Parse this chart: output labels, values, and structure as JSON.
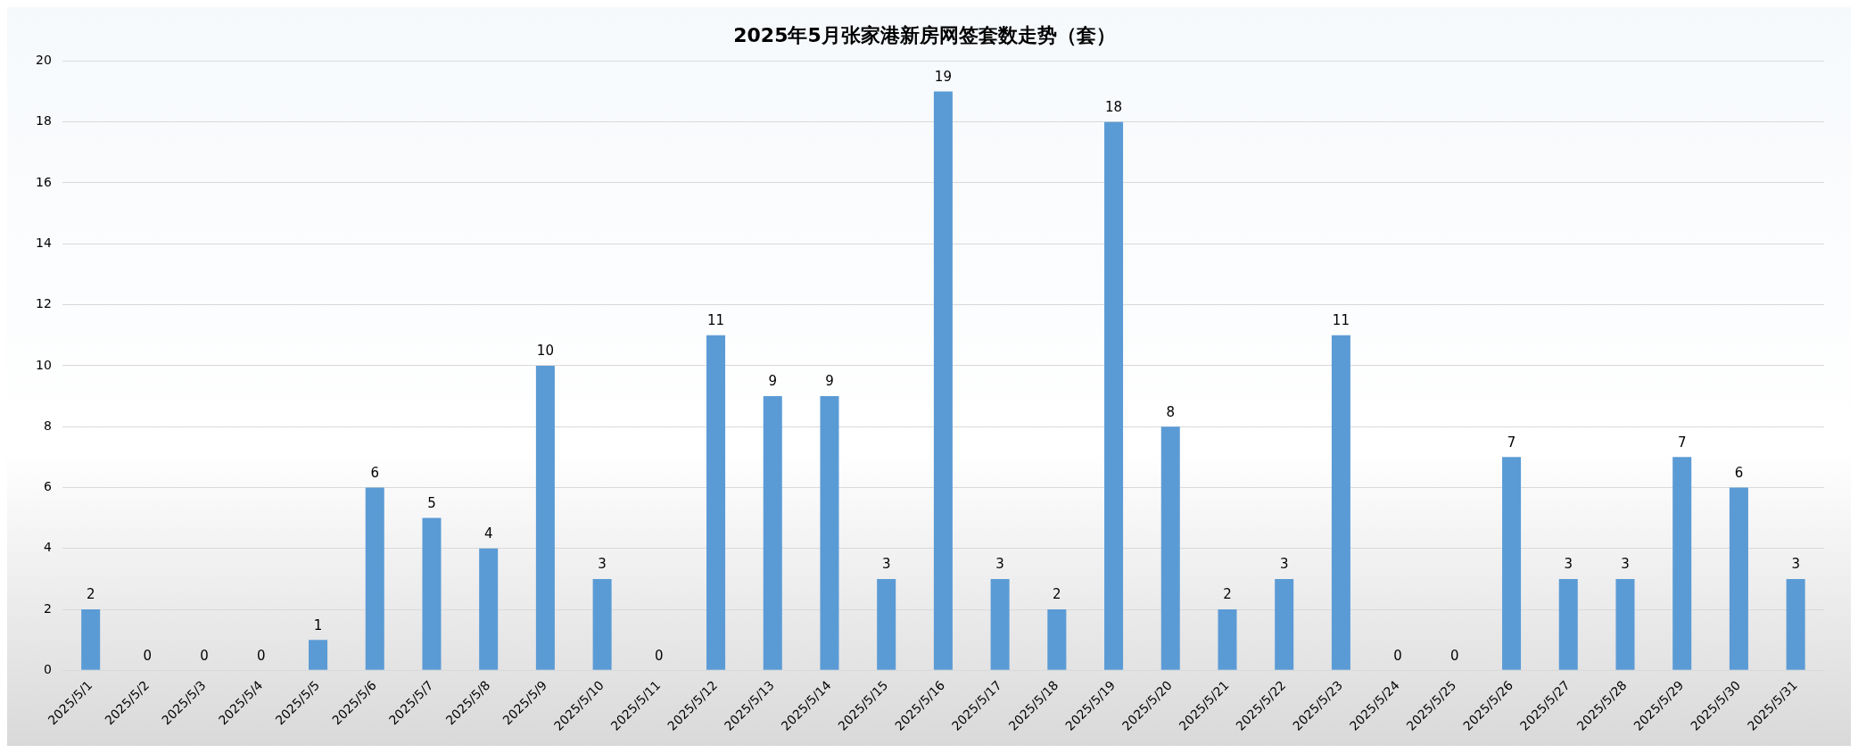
{
  "chart_data": {
    "type": "bar",
    "title": "2025年5月张家港新房网签套数走势（套）",
    "categories": [
      "2025/5/1",
      "2025/5/2",
      "2025/5/3",
      "2025/5/4",
      "2025/5/5",
      "2025/5/6",
      "2025/5/7",
      "2025/5/8",
      "2025/5/9",
      "2025/5/10",
      "2025/5/11",
      "2025/5/12",
      "2025/5/13",
      "2025/5/14",
      "2025/5/15",
      "2025/5/16",
      "2025/5/17",
      "2025/5/18",
      "2025/5/19",
      "2025/5/20",
      "2025/5/21",
      "2025/5/22",
      "2025/5/23",
      "2025/5/24",
      "2025/5/25",
      "2025/5/26",
      "2025/5/27",
      "2025/5/28",
      "2025/5/29",
      "2025/5/30",
      "2025/5/31"
    ],
    "values": [
      2,
      0,
      0,
      0,
      1,
      6,
      5,
      4,
      10,
      3,
      0,
      11,
      9,
      9,
      3,
      19,
      3,
      2,
      18,
      8,
      2,
      3,
      11,
      0,
      0,
      7,
      3,
      3,
      7,
      6,
      3
    ],
    "color": "#5b9bd5",
    "ylim": [
      0,
      20
    ],
    "yticks": [
      0,
      2,
      4,
      6,
      8,
      10,
      12,
      14,
      16,
      18,
      20
    ],
    "grid": "y",
    "data_labels": true
  }
}
